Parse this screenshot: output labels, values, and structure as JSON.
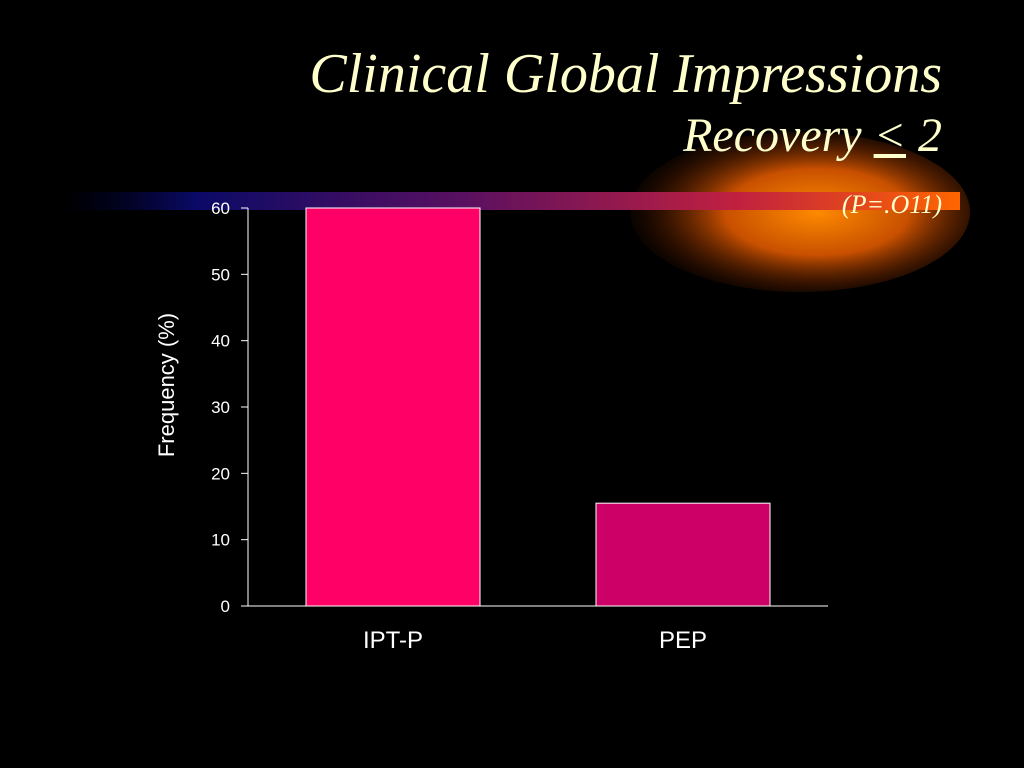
{
  "title": {
    "line1": "Clinical Global Impressions",
    "line2_text": "Recovery ",
    "line2_symbol": "<",
    "line2_value": " 2"
  },
  "subtitle": "(P=.O11)",
  "colors": {
    "background": "#000000",
    "title": "#ffffcc",
    "axis": "#ffffff"
  },
  "chart_data": {
    "type": "bar",
    "categories": [
      "IPT-P",
      "PEP"
    ],
    "values": [
      60,
      15.5
    ],
    "bar_colors": [
      "#ff0066",
      "#cc0066"
    ],
    "ylabel": "Frequency (%)",
    "xlabel": "",
    "ylim": [
      0,
      60
    ],
    "yticks": [
      0,
      10,
      20,
      30,
      40,
      50,
      60
    ],
    "grid": false,
    "legend": "none"
  }
}
